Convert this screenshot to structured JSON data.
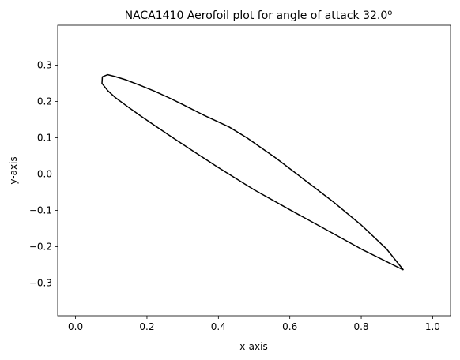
{
  "chart_data": {
    "type": "line",
    "title": "NACA1410 Aerofoil plot for angle of attack 32.0",
    "title_superscript": "o",
    "xlabel": "x-axis",
    "ylabel": "y-axis",
    "xlim": [
      -0.05,
      1.05
    ],
    "ylim": [
      -0.39,
      0.41
    ],
    "xticks": [
      0.0,
      0.2,
      0.4,
      0.6,
      0.8,
      1.0
    ],
    "xtick_labels": [
      "0.0",
      "0.2",
      "0.4",
      "0.6",
      "0.8",
      "1.0"
    ],
    "yticks": [
      -0.3,
      -0.2,
      -0.1,
      0.0,
      0.1,
      0.2,
      0.3
    ],
    "ytick_labels": [
      "−0.3",
      "−0.2",
      "−0.1",
      "0.0",
      "0.1",
      "0.2",
      "0.3"
    ],
    "grid": false,
    "line_color": "#000000",
    "series": [
      {
        "x": [
          0.918,
          0.87,
          0.8,
          0.72,
          0.64,
          0.56,
          0.48,
          0.43,
          0.36,
          0.3,
          0.26,
          0.22,
          0.18,
          0.14,
          0.11,
          0.09,
          0.075,
          0.074,
          0.09,
          0.11,
          0.14,
          0.18,
          0.22,
          0.27,
          0.33,
          0.4,
          0.5,
          0.6,
          0.7,
          0.8,
          0.918
        ],
        "y": [
          -0.264,
          -0.205,
          -0.14,
          -0.075,
          -0.015,
          0.045,
          0.1,
          0.13,
          0.162,
          0.192,
          0.211,
          0.229,
          0.245,
          0.26,
          0.269,
          0.274,
          0.268,
          0.25,
          0.23,
          0.212,
          0.19,
          0.162,
          0.135,
          0.102,
          0.063,
          0.018,
          -0.043,
          -0.098,
          -0.152,
          -0.206,
          -0.264
        ]
      }
    ]
  }
}
